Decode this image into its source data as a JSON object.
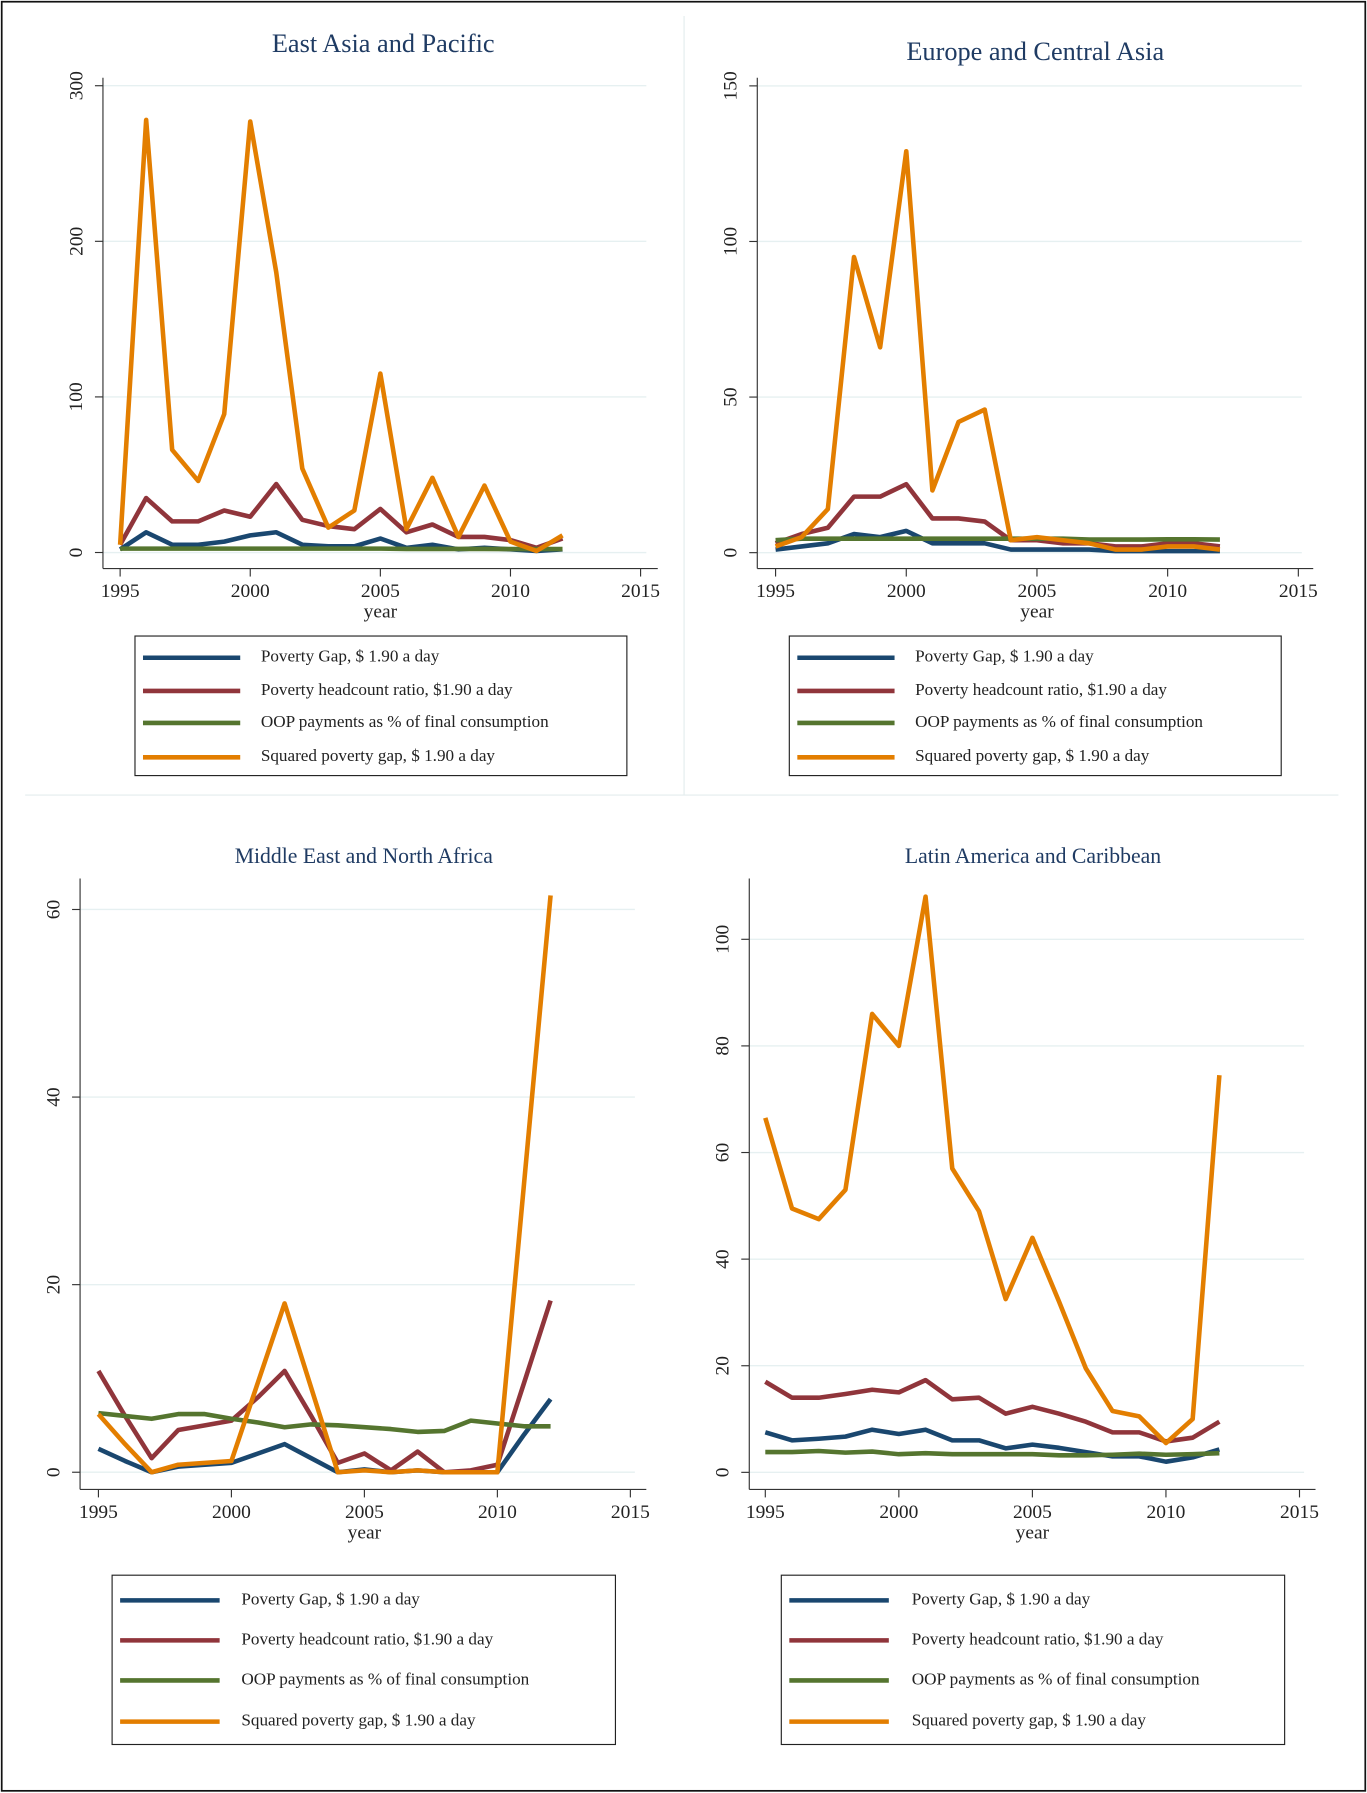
{
  "chart_data": [
    {
      "type": "line",
      "title": "East Asia and Pacific",
      "xlabel": "year",
      "x": [
        1995,
        1996,
        1997,
        1998,
        1999,
        2000,
        2001,
        2002,
        2003,
        2004,
        2005,
        2006,
        2007,
        2008,
        2009,
        2010,
        2011,
        2012
      ],
      "xlim": [
        1994.34,
        2015.66
      ],
      "xticks": [
        1995,
        2000,
        2005,
        2010,
        2015
      ],
      "ylim": [
        -10.3,
        305.1
      ],
      "yticks": [
        0,
        100,
        200,
        300
      ],
      "grid": true,
      "series": [
        {
          "name": "Poverty Gap, $ 1.90 a day",
          "color": "#1a476f",
          "values": [
            2,
            13,
            5,
            5,
            7,
            11,
            13,
            5,
            4,
            4,
            9,
            3,
            5,
            2,
            3,
            2,
            1,
            2
          ]
        },
        {
          "name": "Poverty headcount ratio, $1.90 a day",
          "color": "#90353b",
          "values": [
            5,
            35,
            20,
            20,
            27,
            23,
            44,
            21,
            17,
            15,
            28,
            13,
            18,
            10,
            10,
            8,
            3,
            9
          ]
        },
        {
          "name": "OOP payments as % of final consumption",
          "color": "#55752f",
          "values": [
            2.5,
            2.5,
            2.5,
            2.5,
            2.5,
            2.5,
            2.5,
            2.5,
            2.5,
            2.5,
            2.5,
            2.3,
            2.3,
            2.3,
            2.3,
            2.2,
            2.2,
            2.2
          ]
        },
        {
          "name": "Squared poverty gap, $ 1.90 a day",
          "color": "#e37e00",
          "values": [
            5,
            278,
            66,
            46,
            89,
            277,
            180,
            54,
            16,
            27,
            115,
            15,
            48,
            10,
            43,
            7,
            1,
            11
          ]
        }
      ]
    },
    {
      "type": "line",
      "title": "Europe and Central Asia",
      "xlabel": "year",
      "x": [
        1995,
        1996,
        1997,
        1998,
        1999,
        2000,
        2001,
        2002,
        2003,
        2004,
        2005,
        2006,
        2007,
        2008,
        2009,
        2010,
        2011,
        2012
      ],
      "xlim": [
        1994.3,
        2015.57
      ],
      "xticks": [
        1995,
        2000,
        2005,
        2010,
        2015
      ],
      "ylim": [
        -5.1,
        152.6
      ],
      "yticks": [
        0,
        50,
        100,
        150
      ],
      "grid": true,
      "series": [
        {
          "name": "Poverty Gap, $ 1.90 a day",
          "color": "#1a476f",
          "values": [
            1,
            2,
            3,
            6,
            5,
            7,
            3,
            3,
            3,
            1,
            1,
            1,
            1,
            0.5,
            0.5,
            0.5,
            0.5,
            0.5
          ]
        },
        {
          "name": "Poverty headcount ratio, $1.90 a day",
          "color": "#90353b",
          "values": [
            3,
            6,
            8,
            18,
            18,
            22,
            11,
            11,
            10,
            4,
            4,
            3,
            3,
            2,
            2,
            3,
            3,
            2
          ]
        },
        {
          "name": "OOP payments as % of final consumption",
          "color": "#55752f",
          "values": [
            4,
            4.5,
            4.5,
            4.5,
            4.5,
            4.5,
            4.5,
            4.5,
            4.5,
            4.5,
            4.5,
            4.5,
            4.2,
            4.2,
            4.2,
            4.3,
            4.3,
            4.2
          ]
        },
        {
          "name": "Squared poverty gap, $ 1.90 a day",
          "color": "#e37e00",
          "values": [
            2,
            5,
            14,
            95,
            66,
            129,
            20,
            42,
            46,
            4,
            5,
            4,
            3,
            1,
            1,
            2,
            2,
            1
          ]
        }
      ]
    },
    {
      "type": "line",
      "title": "Middle East and North Africa",
      "xlabel": "year",
      "x": [
        1995,
        1996,
        1997,
        1998,
        1999,
        2000,
        2001,
        2002,
        2003,
        2004,
        2005,
        2006,
        2007,
        2008,
        2009,
        2010,
        2011,
        2012
      ],
      "xlim": [
        1994.31,
        2015.6
      ],
      "xticks": [
        1995,
        2000,
        2005,
        2010,
        2015
      ],
      "ylim": [
        -1.83,
        63.3
      ],
      "yticks": [
        0,
        20,
        40,
        60
      ],
      "grid": true,
      "series": [
        {
          "name": "Poverty Gap, $ 1.90 a day",
          "color": "#1a476f",
          "values": [
            2.5,
            1.2,
            0,
            0.6,
            0.8,
            1,
            2,
            3,
            1.5,
            0,
            0.3,
            0,
            0.2,
            0,
            0,
            0,
            4,
            7.8
          ]
        },
        {
          "name": "Poverty headcount ratio, $1.90 a day",
          "color": "#90353b",
          "values": [
            10.8,
            6,
            1.5,
            4.5,
            5,
            5.5,
            8,
            10.8,
            6,
            1,
            2,
            0.2,
            2.2,
            0,
            0.2,
            0.8,
            9.5,
            18.3
          ]
        },
        {
          "name": "OOP payments as % of final consumption",
          "color": "#55752f",
          "values": [
            6.3,
            6,
            5.7,
            6.2,
            6.2,
            5.7,
            5.3,
            4.8,
            5.1,
            5,
            4.8,
            4.6,
            4.3,
            4.4,
            5.5,
            5.2,
            4.9,
            4.9
          ]
        },
        {
          "name": "Squared poverty gap, $ 1.90 a day",
          "color": "#e37e00",
          "values": [
            6.2,
            3,
            0,
            0.8,
            1,
            1.2,
            9.6,
            18,
            9,
            0,
            0.2,
            0,
            0.2,
            0,
            0,
            0,
            30.7,
            61.5
          ]
        }
      ]
    },
    {
      "type": "line",
      "title": "Latin America and Caribbean",
      "xlabel": "year",
      "x": [
        1995,
        1996,
        1997,
        1998,
        1999,
        2000,
        2001,
        2002,
        2003,
        2004,
        2005,
        2006,
        2007,
        2008,
        2009,
        2010,
        2011,
        2012
      ],
      "xlim": [
        1994.4,
        2015.6
      ],
      "xticks": [
        1995,
        2000,
        2005,
        2010,
        2015
      ],
      "ylim": [
        -3.2,
        111.4
      ],
      "yticks": [
        0,
        20,
        40,
        60,
        80,
        100
      ],
      "grid": true,
      "series": [
        {
          "name": "Poverty Gap, $ 1.90 a day",
          "color": "#1a476f",
          "values": [
            7.5,
            6,
            6.3,
            6.7,
            8,
            7.2,
            8,
            6,
            6,
            4.5,
            5.2,
            4.6,
            3.8,
            3,
            3,
            2,
            2.8,
            4.3
          ]
        },
        {
          "name": "Poverty headcount ratio, $1.90 a day",
          "color": "#90353b",
          "values": [
            17,
            14,
            14,
            14.7,
            15.5,
            15,
            17.3,
            13.7,
            14,
            11,
            12.3,
            11,
            9.5,
            7.5,
            7.5,
            5.8,
            6.5,
            9.5
          ]
        },
        {
          "name": "OOP payments as % of final consumption",
          "color": "#55752f",
          "values": [
            3.8,
            3.8,
            4,
            3.7,
            3.9,
            3.4,
            3.6,
            3.4,
            3.4,
            3.4,
            3.4,
            3.2,
            3.2,
            3.3,
            3.5,
            3.3,
            3.4,
            3.6
          ]
        },
        {
          "name": "Squared poverty gap, $ 1.90 a day",
          "color": "#e37e00",
          "values": [
            66.5,
            49.5,
            47.5,
            53,
            86,
            80,
            108,
            57,
            49,
            32.5,
            44,
            32,
            19.5,
            11.5,
            10.5,
            5.5,
            10,
            74.5
          ]
        }
      ]
    }
  ]
}
